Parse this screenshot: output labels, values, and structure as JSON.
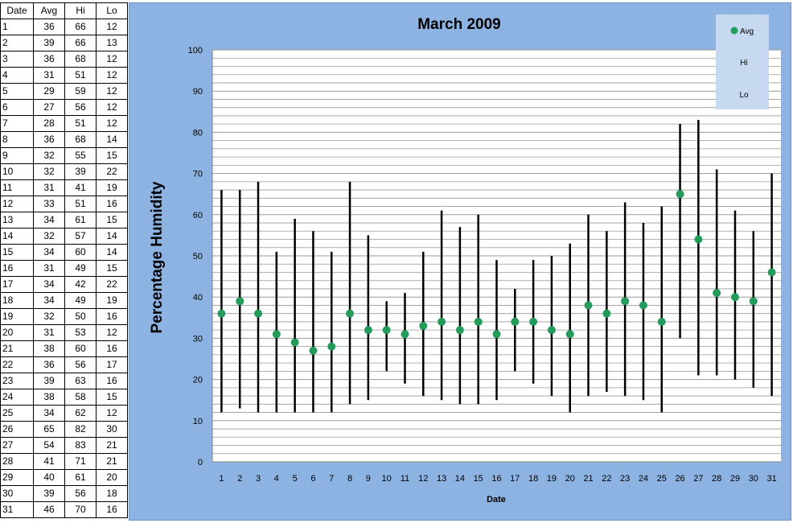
{
  "table": {
    "headers": [
      "Date",
      "Avg",
      "Hi",
      "Lo"
    ],
    "rows": [
      [
        1,
        36,
        66,
        12
      ],
      [
        2,
        39,
        66,
        13
      ],
      [
        3,
        36,
        68,
        12
      ],
      [
        4,
        31,
        51,
        12
      ],
      [
        5,
        29,
        59,
        12
      ],
      [
        6,
        27,
        56,
        12
      ],
      [
        7,
        28,
        51,
        12
      ],
      [
        8,
        36,
        68,
        14
      ],
      [
        9,
        32,
        55,
        15
      ],
      [
        10,
        32,
        39,
        22
      ],
      [
        11,
        31,
        41,
        19
      ],
      [
        12,
        33,
        51,
        16
      ],
      [
        13,
        34,
        61,
        15
      ],
      [
        14,
        32,
        57,
        14
      ],
      [
        15,
        34,
        60,
        14
      ],
      [
        16,
        31,
        49,
        15
      ],
      [
        17,
        34,
        42,
        22
      ],
      [
        18,
        34,
        49,
        19
      ],
      [
        19,
        32,
        50,
        16
      ],
      [
        20,
        31,
        53,
        12
      ],
      [
        21,
        38,
        60,
        16
      ],
      [
        22,
        36,
        56,
        17
      ],
      [
        23,
        39,
        63,
        16
      ],
      [
        24,
        38,
        58,
        15
      ],
      [
        25,
        34,
        62,
        12
      ],
      [
        26,
        65,
        82,
        30
      ],
      [
        27,
        54,
        83,
        21
      ],
      [
        28,
        41,
        71,
        21
      ],
      [
        29,
        40,
        61,
        20
      ],
      [
        30,
        39,
        56,
        18
      ],
      [
        31,
        46,
        70,
        16
      ]
    ]
  },
  "chart_data": {
    "type": "scatter",
    "title": "March 2009",
    "xlabel": "Date",
    "ylabel": "Percentage Humidity",
    "x": [
      1,
      2,
      3,
      4,
      5,
      6,
      7,
      8,
      9,
      10,
      11,
      12,
      13,
      14,
      15,
      16,
      17,
      18,
      19,
      20,
      21,
      22,
      23,
      24,
      25,
      26,
      27,
      28,
      29,
      30,
      31
    ],
    "series": [
      {
        "name": "Avg",
        "values": [
          36,
          39,
          36,
          31,
          29,
          27,
          28,
          36,
          32,
          32,
          31,
          33,
          34,
          32,
          34,
          31,
          34,
          34,
          32,
          31,
          38,
          36,
          39,
          38,
          34,
          65,
          54,
          41,
          40,
          39,
          46
        ]
      },
      {
        "name": "Hi",
        "values": [
          66,
          66,
          68,
          51,
          59,
          56,
          51,
          68,
          55,
          39,
          41,
          51,
          61,
          57,
          60,
          49,
          42,
          49,
          50,
          53,
          60,
          56,
          63,
          58,
          62,
          82,
          83,
          71,
          61,
          56,
          70
        ]
      },
      {
        "name": "Lo",
        "values": [
          12,
          13,
          12,
          12,
          12,
          12,
          12,
          14,
          15,
          22,
          19,
          16,
          15,
          14,
          14,
          15,
          22,
          19,
          16,
          12,
          16,
          17,
          16,
          15,
          12,
          30,
          21,
          21,
          20,
          18,
          16
        ]
      }
    ],
    "ylim": [
      0,
      100
    ],
    "yticks": [
      0,
      10,
      20,
      30,
      40,
      50,
      60,
      70,
      80,
      90,
      100
    ],
    "grid": true,
    "legend": "top-right",
    "colors": {
      "avg_marker": "#239b5a",
      "range_line": "#000000",
      "chart_bg": "#8db3e2",
      "plot_bg": "#ffffff",
      "legend_bg": "#c6d9f1"
    }
  }
}
